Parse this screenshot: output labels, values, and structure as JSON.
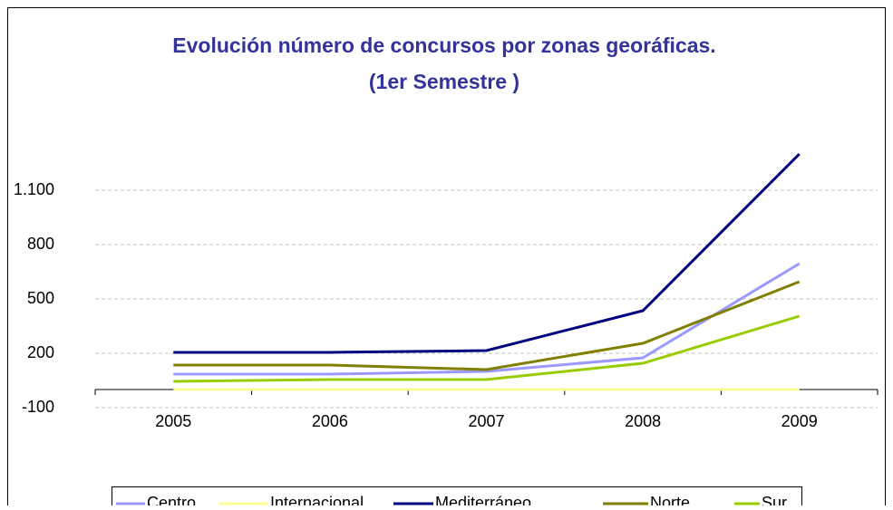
{
  "chart_data": {
    "type": "line",
    "title": [
      "Evolución número de concursos por zonas georáficas.",
      "(1er Semestre )"
    ],
    "categories": [
      "2005",
      "2006",
      "2007",
      "2008",
      "2009"
    ],
    "series": [
      {
        "name": "Centro",
        "color": "#9999ff",
        "values": [
          85,
          85,
          100,
          175,
          695
        ]
      },
      {
        "name": "Internacional",
        "color": "#ffff99",
        "values": [
          0,
          0,
          0,
          0,
          0
        ]
      },
      {
        "name": "Mediterráneo",
        "color": "#000080",
        "values": [
          205,
          205,
          215,
          435,
          1300
        ]
      },
      {
        "name": "Norte",
        "color": "#808000",
        "values": [
          135,
          135,
          110,
          255,
          595
        ]
      },
      {
        "name": "Sur",
        "color": "#99cc00",
        "values": [
          45,
          55,
          55,
          145,
          405
        ]
      }
    ],
    "ylim": [
      -100,
      1300
    ],
    "yticks": [
      -100,
      200,
      500,
      800,
      {
        "value": 1100,
        "label": "1.100"
      }
    ],
    "grid": true
  }
}
